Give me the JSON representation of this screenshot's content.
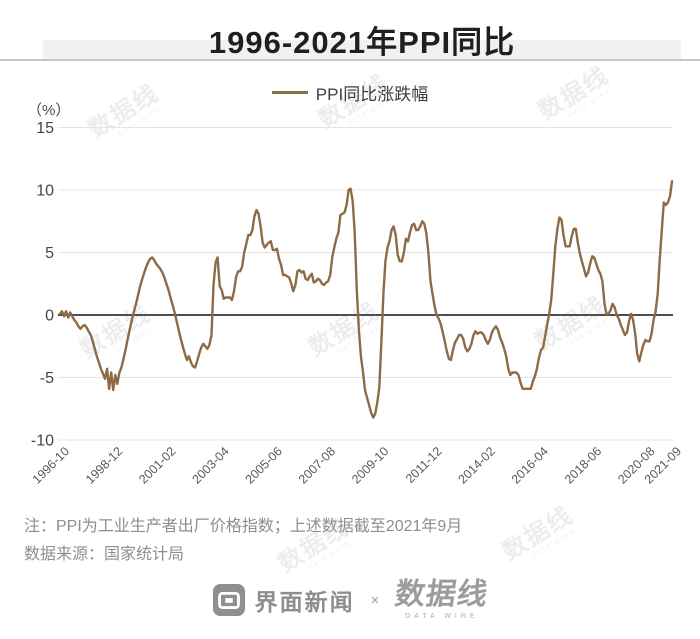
{
  "title": "1996-2021年PPI同比",
  "legend": {
    "label": "PPI同比涨跌幅"
  },
  "y_axis": {
    "unit_label": "（%）"
  },
  "notes": {
    "line1": "注：PPI为工业生产者出厂价格指数；上述数据截至2021年9月",
    "line2": "数据来源：国家统计局"
  },
  "footer": {
    "jiemian_label": "界面新闻",
    "separator": "×",
    "datawire_label": "数据线",
    "datawire_sub": "DATA WIRE"
  },
  "watermark_text": "数据线",
  "watermark_sub": "DATA WIRE",
  "colors": {
    "line": "#8d6b47",
    "zero_line": "#4e4e4e",
    "grid_line": "#e4e4e4",
    "band_bg": "#f1f1f3",
    "divider": "#c6c6c8",
    "title_text": "#1f1f1f",
    "axis_text": "#454545",
    "x_tick_text": "#5a5a5a",
    "note_text": "#8e8e8e",
    "footer_gray": "#949494"
  },
  "chart_data": {
    "type": "line",
    "title": "1996-2021年PPI同比",
    "series_name": "PPI同比涨跌幅",
    "ylabel": "（%）",
    "ylim": [
      -10,
      15
    ],
    "y_ticks": [
      15,
      10,
      5,
      0,
      -5,
      -10
    ],
    "x_start": "1996-10",
    "x_end": "2021-09",
    "x_tick_labels": [
      "1996-10",
      "1998-12",
      "2001-02",
      "2003-04",
      "2005-06",
      "2007-08",
      "2009-10",
      "2011-12",
      "2014-02",
      "2016-04",
      "2018-06",
      "2020-08",
      "2021-09"
    ],
    "x_tick_month_indices": [
      0,
      26,
      52,
      78,
      104,
      130,
      156,
      182,
      208,
      234,
      260,
      286,
      299
    ],
    "values_monthly": [
      0.1,
      0.3,
      -0.1,
      0.3,
      -0.2,
      0.2,
      -0.1,
      -0.4,
      -0.6,
      -0.9,
      -1.1,
      -0.9,
      -0.8,
      -1.0,
      -1.3,
      -1.6,
      -2.1,
      -2.7,
      -3.3,
      -3.8,
      -4.3,
      -4.7,
      -5.1,
      -4.3,
      -5.9,
      -4.6,
      -6.0,
      -4.8,
      -5.5,
      -4.6,
      -4.2,
      -3.5,
      -2.8,
      -2.0,
      -1.2,
      -0.5,
      0.2,
      0.8,
      1.5,
      2.2,
      2.8,
      3.3,
      3.8,
      4.2,
      4.5,
      4.6,
      4.4,
      4.1,
      3.9,
      3.7,
      3.4,
      3.0,
      2.5,
      2.0,
      1.4,
      0.8,
      0.2,
      -0.5,
      -1.2,
      -1.9,
      -2.5,
      -3.1,
      -3.6,
      -3.3,
      -3.8,
      -4.1,
      -4.2,
      -3.7,
      -3.1,
      -2.6,
      -2.3,
      -2.5,
      -2.7,
      -2.4,
      -1.6,
      2.4,
      4.2,
      4.6,
      2.3,
      2.0,
      1.3,
      1.4,
      1.4,
      1.4,
      1.2,
      1.9,
      3.0,
      3.5,
      3.5,
      3.9,
      5.0,
      5.7,
      6.4,
      6.4,
      6.8,
      7.9,
      8.4,
      8.1,
      7.1,
      5.8,
      5.4,
      5.6,
      5.8,
      5.9,
      5.2,
      5.2,
      5.3,
      4.5,
      4.0,
      3.2,
      3.2,
      3.1,
      3.0,
      2.5,
      1.9,
      2.4,
      3.5,
      3.6,
      3.4,
      3.5,
      2.9,
      2.8,
      3.1,
      3.3,
      2.6,
      2.7,
      2.9,
      2.8,
      2.5,
      2.4,
      2.6,
      2.7,
      3.2,
      4.6,
      5.4,
      6.1,
      6.6,
      8.0,
      8.1,
      8.2,
      8.8,
      10.0,
      10.1,
      9.1,
      6.6,
      2.0,
      -1.1,
      -3.3,
      -4.5,
      -6.0,
      -6.6,
      -7.2,
      -7.8,
      -8.2,
      -7.9,
      -7.0,
      -5.8,
      -2.1,
      1.7,
      4.3,
      5.4,
      5.9,
      6.8,
      7.1,
      6.4,
      4.8,
      4.3,
      4.3,
      5.0,
      6.1,
      5.9,
      6.6,
      7.2,
      7.3,
      6.8,
      6.8,
      7.1,
      7.5,
      7.3,
      6.5,
      5.0,
      2.7,
      1.7,
      0.7,
      0.0,
      -0.3,
      -0.7,
      -1.4,
      -2.1,
      -2.9,
      -3.5,
      -3.6,
      -2.8,
      -2.2,
      -1.9,
      -1.6,
      -1.6,
      -1.9,
      -2.6,
      -2.9,
      -2.7,
      -2.3,
      -1.6,
      -1.3,
      -1.5,
      -1.4,
      -1.4,
      -1.6,
      -2.0,
      -2.3,
      -2.0,
      -1.4,
      -1.1,
      -0.9,
      -1.2,
      -1.8,
      -2.2,
      -2.7,
      -3.3,
      -4.3,
      -4.8,
      -4.6,
      -4.6,
      -4.6,
      -4.8,
      -5.4,
      -5.9,
      -5.9,
      -5.9,
      -5.9,
      -5.9,
      -5.3,
      -4.9,
      -4.3,
      -3.4,
      -2.8,
      -2.6,
      -1.7,
      -0.8,
      0.1,
      1.2,
      3.3,
      5.5,
      6.9,
      7.8,
      7.6,
      6.4,
      5.5,
      5.5,
      5.5,
      6.3,
      6.9,
      6.9,
      5.8,
      4.9,
      4.3,
      3.7,
      3.1,
      3.4,
      4.1,
      4.7,
      4.6,
      4.1,
      3.6,
      3.3,
      2.7,
      0.9,
      0.1,
      0.1,
      0.4,
      0.9,
      0.6,
      0.0,
      -0.3,
      -0.8,
      -1.2,
      -1.6,
      -1.4,
      -0.5,
      0.1,
      -0.4,
      -1.5,
      -3.1,
      -3.7,
      -3.0,
      -2.4,
      -2.0,
      -2.1,
      -2.1,
      -1.5,
      -0.4,
      0.3,
      1.7,
      4.4,
      6.8,
      9.0,
      8.8,
      9.0,
      9.5,
      10.7
    ],
    "line_color": "#8d6b47",
    "grid": true,
    "legend_position": "top-center"
  }
}
